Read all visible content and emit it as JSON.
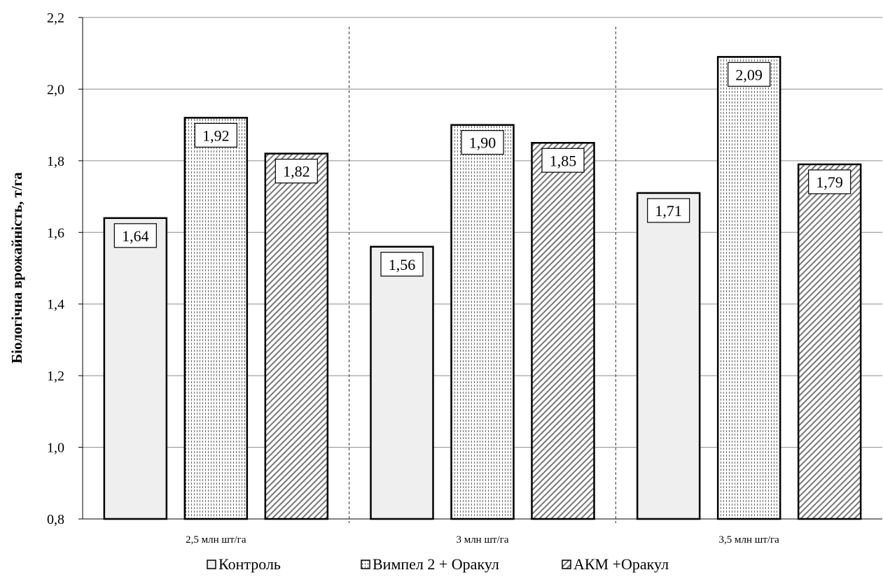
{
  "chart_data": {
    "type": "bar",
    "title": "",
    "xlabel": "",
    "ylabel": "Біологічна врожайність,  т/га",
    "ylim": [
      0.8,
      2.2
    ],
    "yticks": [
      "0,8",
      "1,0",
      "1,2",
      "1,4",
      "1,6",
      "1,8",
      "2,0",
      "2,2"
    ],
    "ytick_values": [
      0.8,
      1.0,
      1.2,
      1.4,
      1.6,
      1.8,
      2.0,
      2.2
    ],
    "grid": true,
    "legend_position": "bottom",
    "categories": [
      "2,5 млн шт/га",
      "3 млн шт/га",
      "3,5 млн шт/га"
    ],
    "series": [
      {
        "name": "Контроль",
        "values": [
          1.64,
          1.56,
          1.71
        ],
        "labels": [
          "1,64",
          "1,56",
          "1,71"
        ],
        "pattern": "solid-light"
      },
      {
        "name": "Вимпел 2 + Оракул",
        "values": [
          1.92,
          1.9,
          2.09
        ],
        "labels": [
          "1,92",
          "1,90",
          "2,09"
        ],
        "pattern": "dots"
      },
      {
        "name": "АКМ +Оракул",
        "values": [
          1.82,
          1.85,
          1.79
        ],
        "labels": [
          "1,82",
          "1,85",
          "1,79"
        ],
        "pattern": "diagonal"
      }
    ]
  }
}
